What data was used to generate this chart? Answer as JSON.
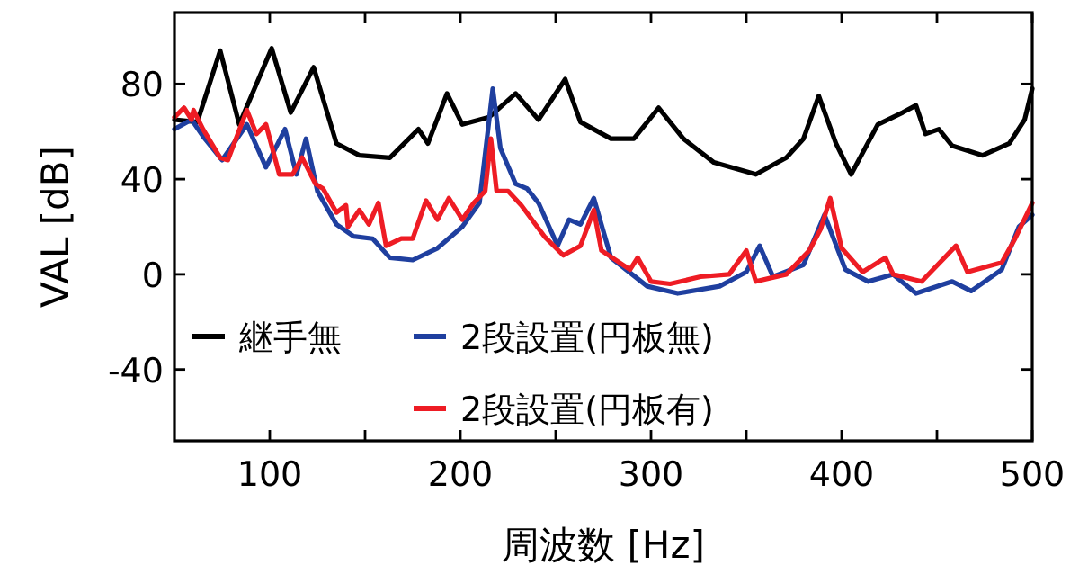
{
  "chart_data": {
    "type": "line",
    "xlabel": "周波数 [Hz]",
    "ylabel": "VAL [dB]",
    "xlim": [
      50,
      500
    ],
    "ylim": [
      -70,
      110
    ],
    "xticks": [
      100,
      {
        "value": 150,
        "label": null
      },
      200,
      {
        "value": 250,
        "label": null
      },
      300,
      {
        "value": 350,
        "label": null
      },
      400,
      {
        "value": 450,
        "label": null
      },
      500
    ],
    "yticks": [
      -40,
      0,
      40,
      80
    ],
    "legend": "bottom left",
    "series": [
      {
        "name": "継手無",
        "color": "#000000",
        "x": [
          50,
          62,
          74,
          84,
          101,
          111,
          123,
          135,
          147,
          163,
          178,
          183,
          193,
          201,
          215,
          229,
          241,
          255,
          263,
          279,
          291,
          304,
          317,
          333,
          355,
          364,
          371,
          380,
          388,
          397,
          405,
          419,
          432,
          439,
          444,
          451,
          458,
          474,
          488,
          496,
          500
        ],
        "values": [
          65,
          64,
          94,
          63,
          95,
          68,
          87,
          55,
          50,
          49,
          61,
          55,
          76,
          63,
          66,
          76,
          65,
          82,
          64,
          57,
          57,
          70,
          57,
          47,
          42,
          46,
          49,
          57,
          75,
          55,
          42,
          63,
          68,
          71,
          59,
          61,
          54,
          50,
          55,
          65,
          78
        ]
      },
      {
        "name": "2段設置(円板無)",
        "color": "#1f3f9f",
        "x": [
          50,
          59,
          65,
          75,
          88,
          98,
          108,
          114,
          119,
          125,
          135,
          144,
          154,
          163,
          175,
          188,
          201,
          210,
          217,
          221,
          229,
          235,
          241,
          251,
          257,
          263,
          270,
          279,
          298,
          314,
          336,
          350,
          357,
          364,
          380,
          391,
          402,
          414,
          427,
          439,
          458,
          468,
          484,
          493,
          500
        ],
        "values": [
          61,
          65,
          58,
          48,
          63,
          45,
          61,
          42,
          57,
          35,
          21,
          16,
          15,
          7,
          6,
          11,
          20,
          30,
          78,
          53,
          38,
          36,
          30,
          12,
          23,
          21,
          32,
          7,
          -5,
          -8,
          -5,
          1,
          12,
          -1,
          4,
          25,
          2,
          -3,
          0,
          -8,
          -3,
          -7,
          2,
          20,
          25
        ]
      },
      {
        "name": "2段設置(円板有)",
        "color": "#ee1c24",
        "x": [
          50,
          55,
          59,
          60,
          65,
          74,
          78,
          88,
          93,
          98,
          105,
          112,
          117,
          124,
          128,
          135,
          140,
          141,
          147,
          152,
          157,
          161,
          169,
          175,
          182,
          188,
          194,
          201,
          207,
          213,
          216,
          219,
          225,
          232,
          244,
          254,
          263,
          270,
          274,
          289,
          293,
          300,
          310,
          326,
          341,
          350,
          355,
          371,
          383,
          389,
          394,
          400,
          411,
          423,
          427,
          442,
          460,
          466,
          484,
          491,
          500
        ],
        "values": [
          66,
          70,
          65,
          69,
          61,
          49,
          48,
          69,
          59,
          63,
          42,
          42,
          49,
          38,
          36,
          26,
          29,
          20,
          27,
          21,
          30,
          12,
          15,
          15,
          31,
          23,
          32,
          23,
          30,
          35,
          57,
          35,
          35,
          29,
          16,
          8,
          12,
          27,
          10,
          2,
          7,
          -3,
          -4,
          -1,
          0,
          10,
          -3,
          0,
          10,
          19,
          32,
          11,
          1,
          7,
          0,
          -3,
          12,
          1,
          5,
          15,
          30
        ]
      }
    ]
  }
}
